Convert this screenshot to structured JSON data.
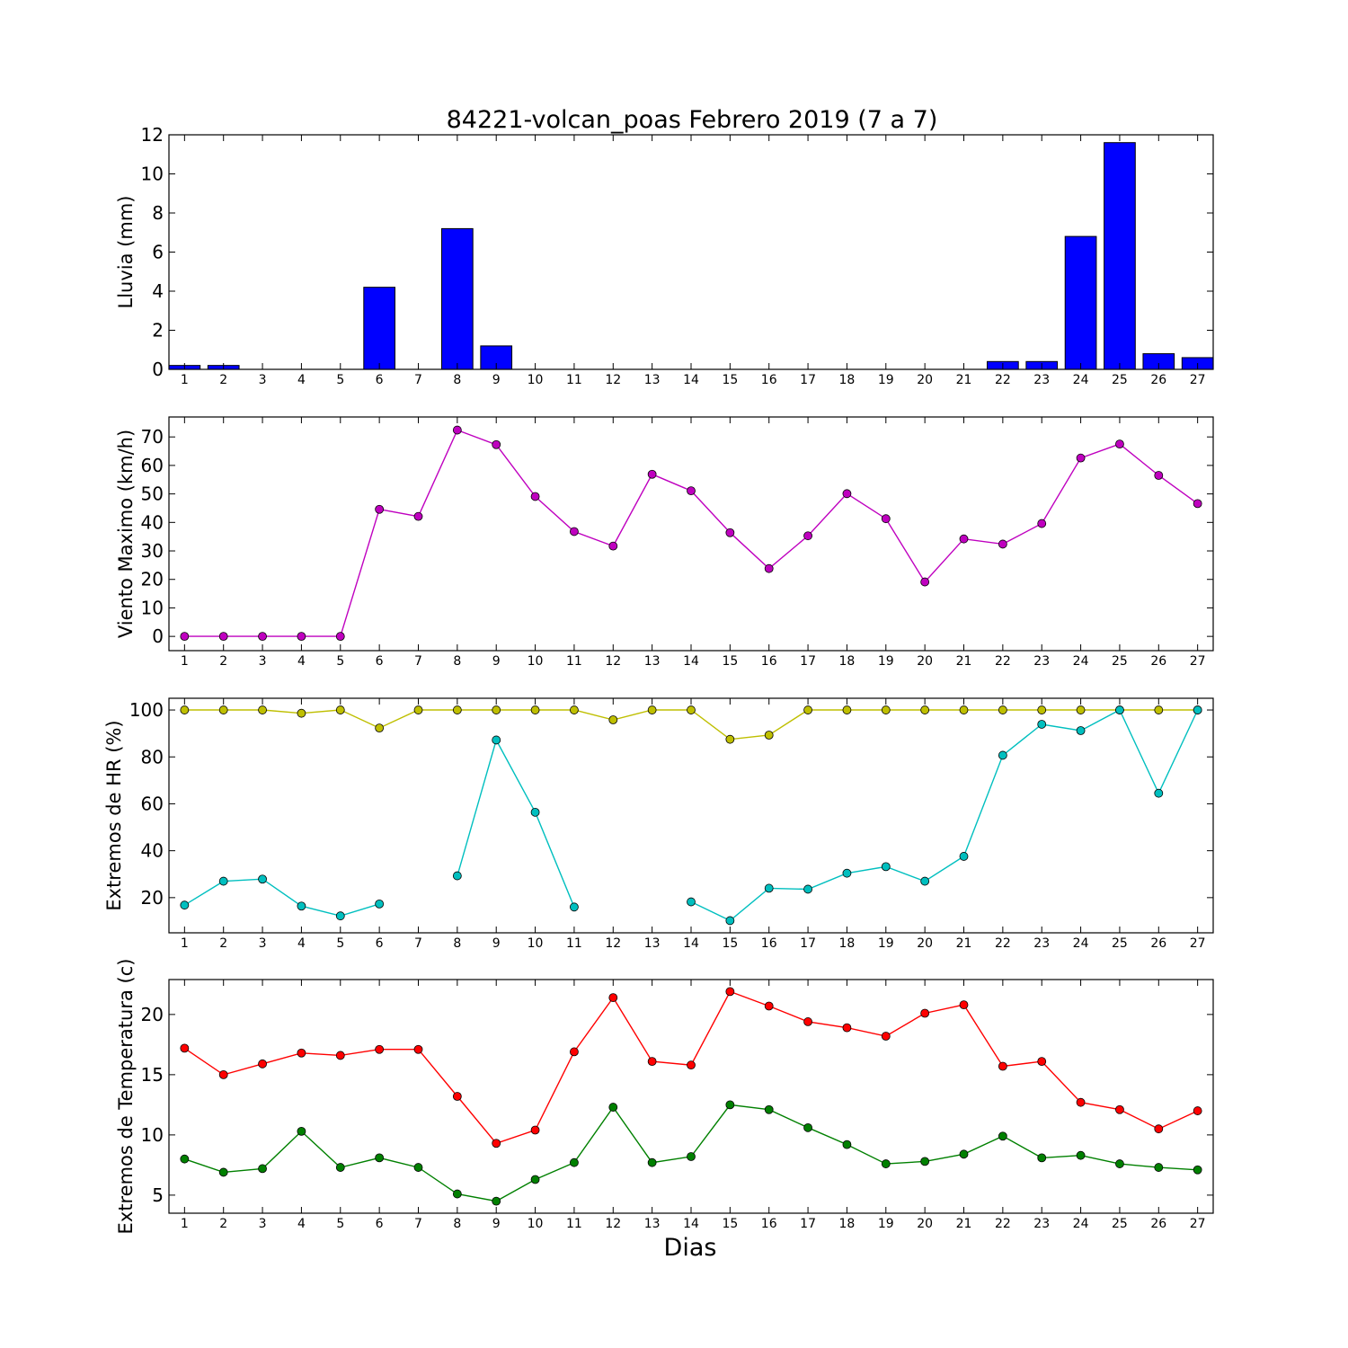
{
  "title": "84221-volcan_poas Febrero 2019  (7 a 7)",
  "xlabel": "Dias",
  "days": [
    1,
    2,
    3,
    4,
    5,
    6,
    7,
    8,
    9,
    10,
    11,
    12,
    13,
    14,
    15,
    16,
    17,
    18,
    19,
    20,
    21,
    22,
    23,
    24,
    25,
    26,
    27
  ],
  "chart_data": [
    {
      "type": "bar",
      "ylabel": "Lluvia (mm)",
      "ylim": [
        0,
        12
      ],
      "yticks": [
        0,
        2,
        4,
        6,
        8,
        10,
        12
      ],
      "x": [
        1,
        2,
        3,
        4,
        5,
        6,
        7,
        8,
        9,
        10,
        11,
        12,
        13,
        14,
        15,
        16,
        17,
        18,
        19,
        20,
        21,
        22,
        23,
        24,
        25,
        26,
        27
      ],
      "series": [
        {
          "color": "#0000ff",
          "values": [
            0.2,
            0.2,
            0,
            0,
            0,
            4.2,
            0,
            7.2,
            1.2,
            0,
            0,
            0,
            0,
            0,
            0,
            0,
            0,
            0,
            0,
            0,
            0,
            0.4,
            0.4,
            6.8,
            11.6,
            0.8,
            0.6
          ]
        }
      ],
      "grid": false
    },
    {
      "type": "line",
      "ylabel": "Viento Maximo (km/h)",
      "ylim": [
        -5,
        77
      ],
      "yticks": [
        0,
        10,
        20,
        30,
        40,
        50,
        60,
        70
      ],
      "x": [
        1,
        2,
        3,
        4,
        5,
        6,
        7,
        8,
        9,
        10,
        11,
        12,
        13,
        14,
        15,
        16,
        17,
        18,
        19,
        20,
        21,
        22,
        23,
        24,
        25,
        26,
        27
      ],
      "series": [
        {
          "color": "#bf00bf",
          "values": [
            0,
            0,
            0,
            0,
            0,
            44.6,
            42.1,
            72.4,
            67.3,
            49.1,
            36.8,
            31.7,
            56.9,
            51.1,
            36.4,
            23.8,
            35.3,
            50.1,
            41.3,
            19.1,
            34.2,
            32.4,
            39.6,
            62.6,
            67.5,
            56.5,
            46.6
          ]
        }
      ],
      "grid": false
    },
    {
      "type": "line",
      "ylabel": "Extremos de HR (%)",
      "ylim": [
        5,
        105
      ],
      "yticks": [
        20,
        40,
        60,
        80,
        100
      ],
      "x": [
        1,
        2,
        3,
        4,
        5,
        6,
        7,
        8,
        9,
        10,
        11,
        12,
        13,
        14,
        15,
        16,
        17,
        18,
        19,
        20,
        21,
        22,
        23,
        24,
        25,
        26,
        27
      ],
      "series": [
        {
          "color": "#bfbf00",
          "values": [
            100,
            100,
            100,
            98.6,
            100,
            92.3,
            100,
            100,
            100,
            100,
            100,
            95.8,
            100,
            100,
            87.5,
            89.3,
            100,
            100,
            100,
            100,
            100,
            100,
            100,
            100,
            100,
            100,
            100
          ]
        },
        {
          "color": "#00bfbf",
          "values": [
            16.8,
            27,
            27.9,
            16.4,
            12.2,
            17.3,
            null,
            29.3,
            87.2,
            56.4,
            16,
            null,
            null,
            18.2,
            10.2,
            24,
            23.6,
            30.4,
            33.2,
            27,
            37.6,
            80.7,
            93.9,
            91.2,
            100,
            64.5,
            100
          ]
        }
      ],
      "grid": false
    },
    {
      "type": "line",
      "ylabel": "Extremos de Temperatura (c)",
      "ylim": [
        3.5,
        22.9
      ],
      "yticks": [
        5,
        10,
        15,
        20
      ],
      "x": [
        1,
        2,
        3,
        4,
        5,
        6,
        7,
        8,
        9,
        10,
        11,
        12,
        13,
        14,
        15,
        16,
        17,
        18,
        19,
        20,
        21,
        22,
        23,
        24,
        25,
        26,
        27
      ],
      "series": [
        {
          "color": "#ff0000",
          "values": [
            17.2,
            15,
            15.9,
            16.8,
            16.6,
            17.1,
            17.1,
            13.2,
            9.3,
            10.4,
            16.9,
            21.4,
            16.1,
            15.8,
            21.9,
            20.7,
            19.4,
            18.9,
            18.2,
            20.1,
            20.8,
            15.7,
            16.1,
            12.7,
            12.1,
            10.5,
            12
          ]
        },
        {
          "color": "#008000",
          "values": [
            8,
            6.9,
            7.2,
            10.3,
            7.3,
            8.1,
            7.3,
            5.1,
            4.5,
            6.3,
            7.7,
            12.3,
            7.7,
            8.2,
            12.5,
            12.1,
            10.6,
            9.2,
            7.6,
            7.8,
            8.4,
            9.9,
            8.1,
            8.3,
            7.6,
            7.3,
            7.1
          ]
        }
      ],
      "grid": false
    }
  ]
}
